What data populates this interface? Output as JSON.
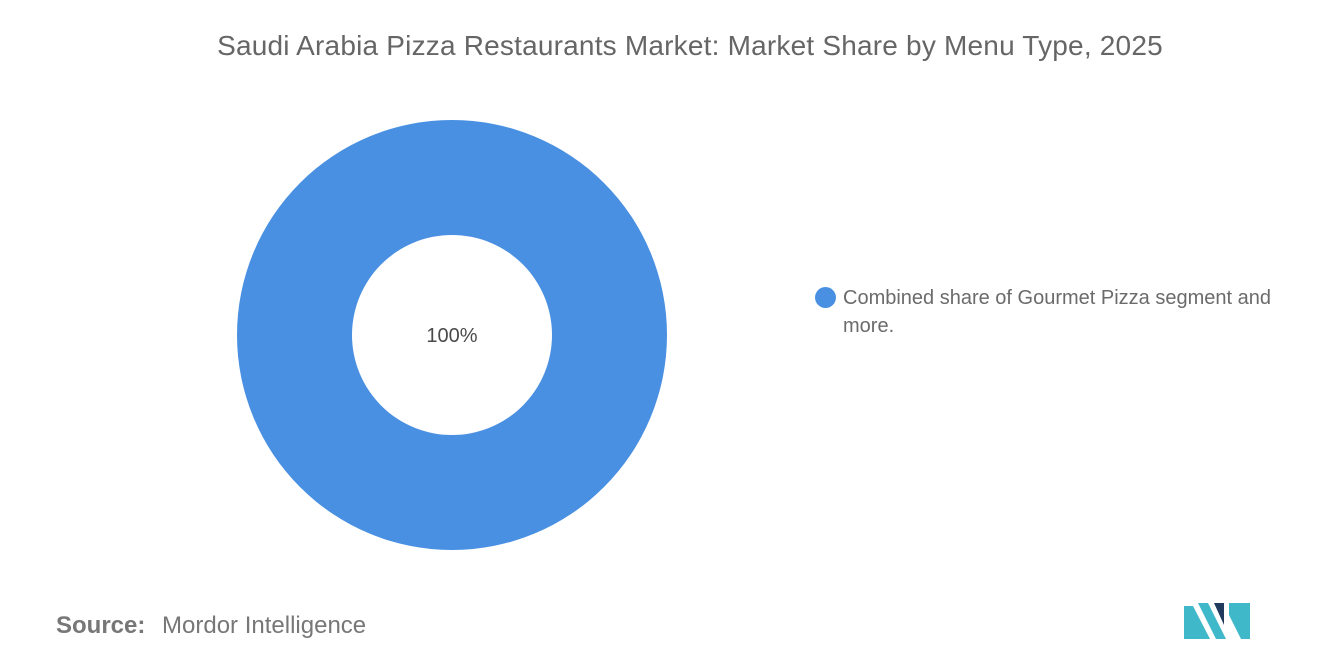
{
  "chart_data": {
    "type": "pie",
    "style": "donut",
    "title": "Saudi Arabia Pizza Restaurants Market: Market Share by Menu Type, 2025",
    "slices": [
      {
        "label": "Combined share of Gourmet Pizza segment and more.",
        "value": 100,
        "value_label": "100%",
        "color": "#4a90e2"
      }
    ],
    "legend_position": "right"
  },
  "footer": {
    "source_label": "Source:",
    "source_value": "Mordor Intelligence"
  },
  "logo": {
    "icon": "mordor-intelligence-logo",
    "colors": [
      "#1f3a5c",
      "#3fb8c9"
    ]
  }
}
